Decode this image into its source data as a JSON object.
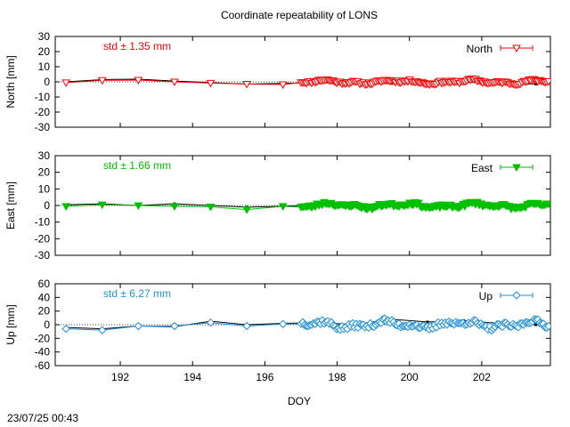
{
  "title": "Coordinate repeatability of LONS",
  "timestamp": "23/07/25 00:43",
  "xlabel": "DOY",
  "chart_data": {
    "type": "scatter",
    "title": "Coordinate repeatability of LONS",
    "xlabel": "DOY",
    "xlim": [
      190.2,
      203.9
    ],
    "xticks": [
      192,
      194,
      196,
      198,
      200,
      202
    ],
    "panels": [
      {
        "key": "north",
        "ylabel": "North [mm]",
        "ylim": [
          -30,
          30
        ],
        "yticks": [
          -30,
          -20,
          -10,
          0,
          10,
          20,
          30
        ],
        "color": "#ff0000",
        "marker": "triangle-down-open",
        "legend": "North",
        "std_label": "std ± 1.35 mm",
        "daily_x": [
          190.5,
          191.5,
          192.5,
          193.5,
          194.5,
          195.5,
          196.5
        ],
        "daily_y": [
          -0.5,
          1.0,
          1.2,
          0.0,
          -0.8,
          -1.5,
          -1.8
        ],
        "dense_x0": 197.0,
        "dense_x1": 203.85,
        "dense_n": 140,
        "dense_amp": 1.4,
        "dense_seed": 11
      },
      {
        "key": "east",
        "ylabel": "East [mm]",
        "ylim": [
          -30,
          30
        ],
        "yticks": [
          -30,
          -20,
          -10,
          0,
          10,
          20,
          30
        ],
        "color": "#00c000",
        "marker": "triangle-down-filled",
        "legend": "East",
        "std_label": "std ± 1.66 mm",
        "daily_x": [
          190.5,
          191.5,
          192.5,
          193.5,
          194.5,
          195.5,
          196.5
        ],
        "daily_y": [
          -0.5,
          0.5,
          0.0,
          -0.5,
          -0.8,
          -2.5,
          -0.5
        ],
        "dense_x0": 197.0,
        "dense_x1": 203.85,
        "dense_n": 140,
        "dense_amp": 1.6,
        "dense_seed": 23
      },
      {
        "key": "up",
        "ylabel": "Up [mm]",
        "ylim": [
          -60,
          60
        ],
        "yticks": [
          -60,
          -40,
          -20,
          0,
          20,
          40,
          60
        ],
        "color": "#1e90e0",
        "marker": "diamond-open",
        "legend": "Up",
        "std_label": "std ± 6.27 mm",
        "daily_x": [
          190.5,
          191.5,
          192.5,
          193.5,
          194.5,
          195.5,
          196.5
        ],
        "daily_y": [
          -6.0,
          -8.0,
          -2.0,
          -2.0,
          3.0,
          -2.0,
          1.0
        ],
        "dense_x0": 197.0,
        "dense_x1": 203.85,
        "dense_n": 140,
        "dense_amp": 6.2,
        "dense_seed": 37
      }
    ],
    "reference_series": {
      "name": "",
      "color": "#000000",
      "x": [
        190.5,
        191.5,
        192.5,
        193.5,
        194.5,
        195.5,
        196.5,
        197.5,
        198.5,
        199.5,
        200.5,
        201.5,
        202.5,
        203.5
      ],
      "north": [
        0.0,
        1.5,
        1.8,
        0.5,
        -0.5,
        -1.5,
        -1.0,
        -0.5,
        -1.0,
        -1.0,
        0.0,
        0.0,
        -1.0,
        -1.5
      ],
      "east": [
        0.5,
        1.0,
        0.0,
        1.0,
        0.0,
        -1.0,
        -0.5,
        0.5,
        0.0,
        0.0,
        0.5,
        0.5,
        0.0,
        0.0
      ],
      "up": [
        -4.0,
        -6.0,
        -2.0,
        -3.0,
        5.0,
        0.0,
        2.0,
        3.0,
        0.0,
        8.0,
        4.0,
        6.0,
        2.0,
        0.0
      ]
    }
  }
}
